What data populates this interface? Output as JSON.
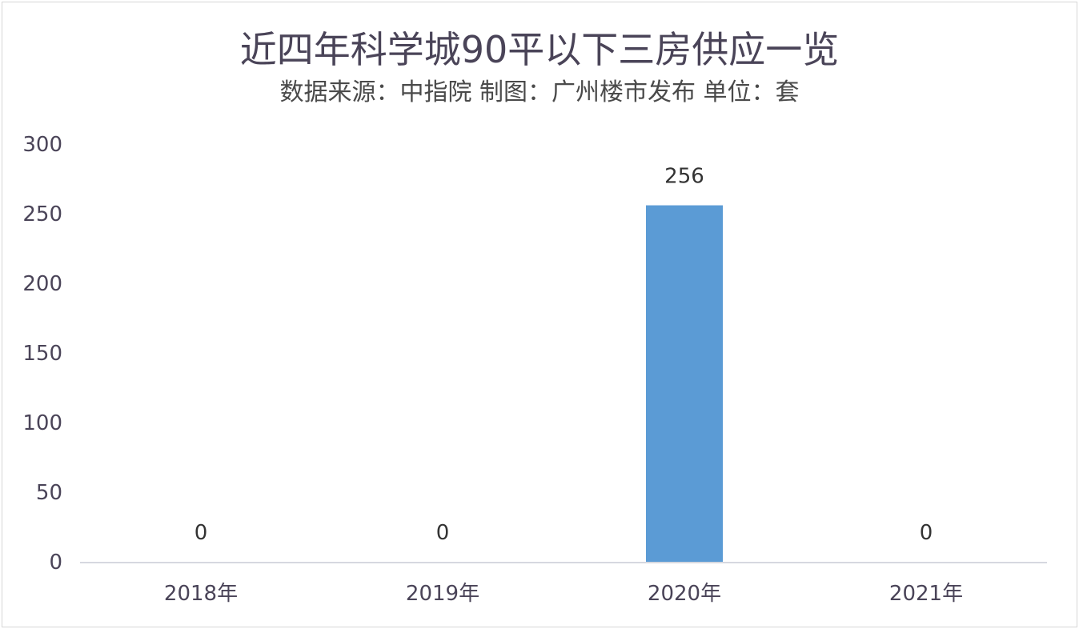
{
  "chart_data": {
    "type": "bar",
    "title": "近四年科学城90平以下三房供应一览",
    "subtitle": "数据来源：中指院  制图：广州楼市发布 单位：套",
    "categories": [
      "2018年",
      "2019年",
      "2020年",
      "2021年"
    ],
    "values": [
      0,
      0,
      256,
      0
    ],
    "data_labels": [
      "0",
      "0",
      "256",
      "0"
    ],
    "ylim": [
      0,
      300
    ],
    "yticks": [
      0,
      50,
      100,
      150,
      200,
      250,
      300
    ],
    "ytick_labels": [
      "0",
      "50",
      "100",
      "150",
      "200",
      "250",
      "300"
    ],
    "grid": false,
    "bar_color": "#5b9bd5",
    "axis_color": "#c8ccd6"
  }
}
